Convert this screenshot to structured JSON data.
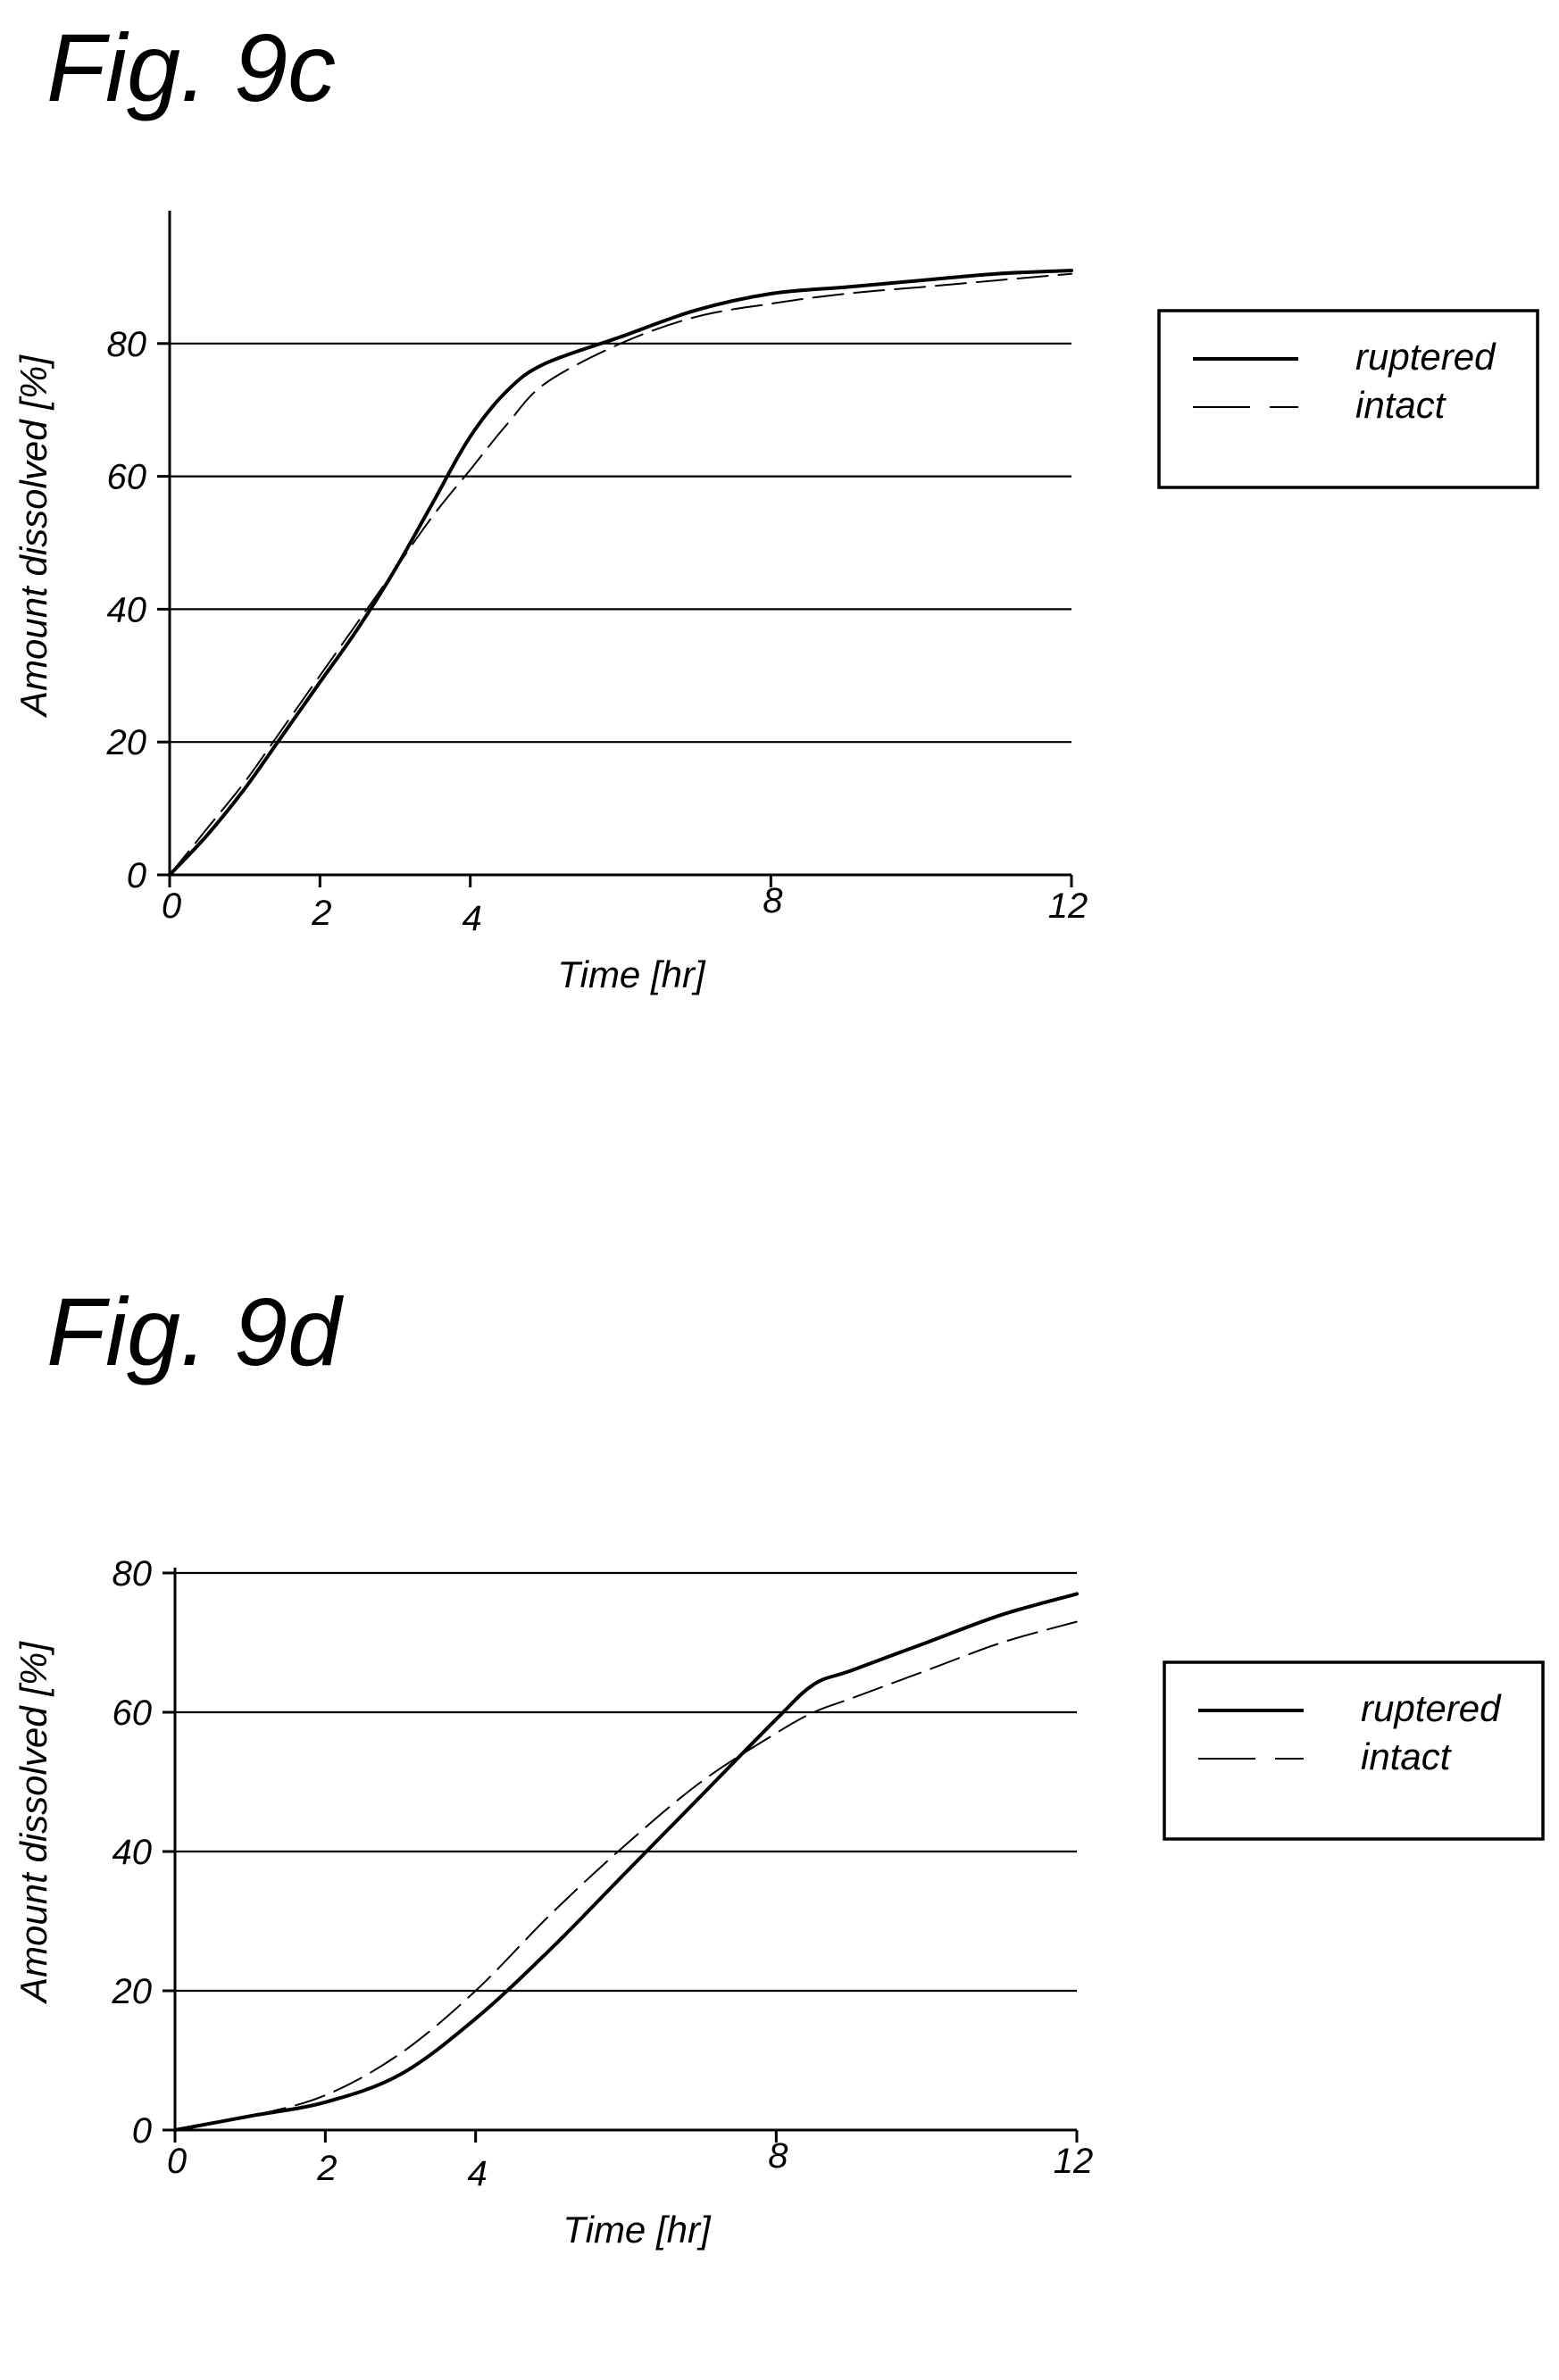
{
  "chart_data": [
    {
      "type": "line",
      "title": "Fig. 9c",
      "xlabel": "Time [hr]",
      "ylabel": "Amount dissolved [%]",
      "xlim": [
        0,
        12
      ],
      "ylim": [
        0,
        100
      ],
      "xticks": [
        0,
        2,
        4,
        8,
        12
      ],
      "yticks": [
        0,
        20,
        40,
        60,
        80
      ],
      "grid": "horizontal",
      "legend": "right",
      "series": [
        {
          "name": "ruptered",
          "style": "solid",
          "x": [
            0,
            0.5,
            1,
            1.5,
            2,
            2.5,
            3,
            3.5,
            4,
            4.5,
            5,
            6,
            7,
            8,
            9,
            10,
            11,
            12
          ],
          "y": [
            0,
            6,
            13,
            21,
            29,
            37,
            46,
            56,
            66,
            73,
            77,
            81,
            85,
            87.5,
            88.5,
            89.5,
            90.5,
            91
          ]
        },
        {
          "name": "intact",
          "style": "dashed",
          "x": [
            0,
            0.5,
            1,
            1.5,
            2,
            2.5,
            3,
            3.5,
            4,
            4.5,
            5,
            6,
            7,
            8,
            9,
            10,
            11,
            12
          ],
          "y": [
            0,
            7,
            14,
            22,
            30,
            38,
            46,
            54,
            61,
            68,
            74,
            80,
            84,
            86,
            87.5,
            88.5,
            89.5,
            90.5
          ]
        }
      ]
    },
    {
      "type": "line",
      "title": "Fig. 9d",
      "xlabel": "Time [hr]",
      "ylabel": "Amount dissolved [%]",
      "xlim": [
        0,
        12
      ],
      "ylim": [
        0,
        100
      ],
      "xticks": [
        0,
        2,
        4,
        8,
        12
      ],
      "yticks": [
        0,
        20,
        40,
        60,
        80
      ],
      "grid": "horizontal",
      "legend": "right",
      "series": [
        {
          "name": "ruptered",
          "style": "solid",
          "x": [
            0,
            1,
            2,
            3,
            4,
            5,
            6,
            7,
            8,
            8.5,
            9,
            10,
            11,
            12
          ],
          "y": [
            0,
            2,
            4,
            8,
            16,
            26,
            37,
            48,
            59,
            64,
            66,
            70,
            74,
            77
          ]
        },
        {
          "name": "intact",
          "style": "dashed",
          "x": [
            0,
            1,
            2,
            3,
            4,
            5,
            6,
            7,
            8,
            8.5,
            9,
            10,
            11,
            12
          ],
          "y": [
            0,
            2,
            5,
            11,
            20,
            31,
            41,
            50,
            57,
            60,
            62,
            66,
            70,
            73
          ]
        }
      ]
    }
  ]
}
